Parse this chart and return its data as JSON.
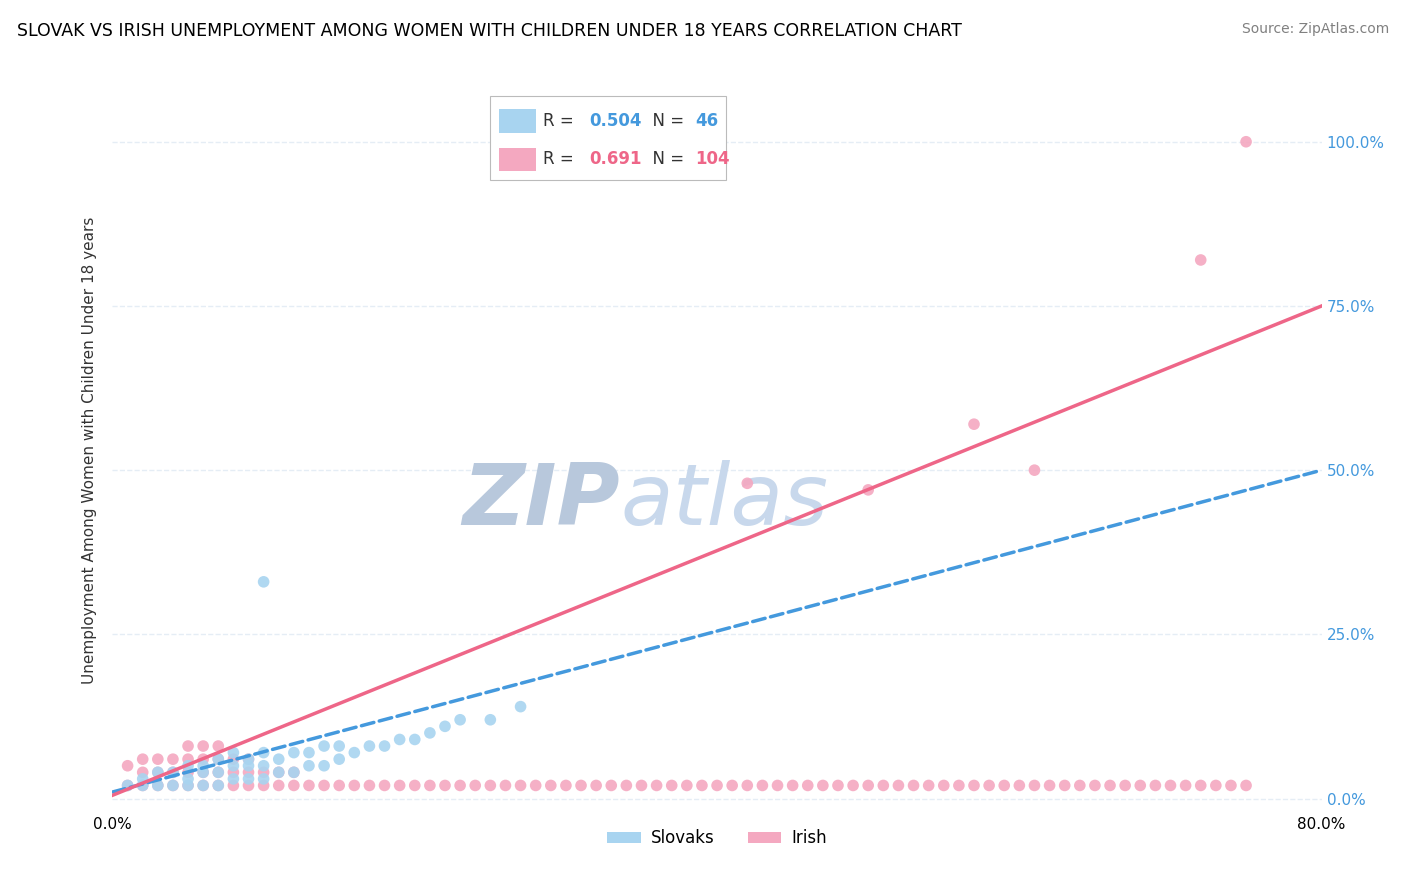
{
  "title": "SLOVAK VS IRISH UNEMPLOYMENT AMONG WOMEN WITH CHILDREN UNDER 18 YEARS CORRELATION CHART",
  "source": "Source: ZipAtlas.com",
  "ylabel": "Unemployment Among Women with Children Under 18 years",
  "xlim": [
    0.0,
    0.8
  ],
  "ylim": [
    -0.02,
    1.08
  ],
  "ytick_positions": [
    0.0,
    0.25,
    0.5,
    0.75,
    1.0
  ],
  "ytick_labels": [
    "0.0%",
    "25.0%",
    "50.0%",
    "75.0%",
    "100.0%"
  ],
  "slovak_R": 0.504,
  "slovak_N": 46,
  "irish_R": 0.691,
  "irish_N": 104,
  "slovak_color": "#A8D4F0",
  "irish_color": "#F4A8C0",
  "slovak_trend_color": "#4499DD",
  "irish_trend_color": "#EE6688",
  "watermark_color": "#C8D8EC",
  "background_color": "#FFFFFF",
  "grid_color": "#E5EDF5",
  "slovak_x": [
    0.01,
    0.02,
    0.02,
    0.03,
    0.03,
    0.04,
    0.04,
    0.05,
    0.05,
    0.05,
    0.06,
    0.06,
    0.06,
    0.07,
    0.07,
    0.07,
    0.08,
    0.08,
    0.08,
    0.09,
    0.09,
    0.09,
    0.1,
    0.1,
    0.1,
    0.11,
    0.11,
    0.12,
    0.12,
    0.13,
    0.13,
    0.14,
    0.14,
    0.15,
    0.15,
    0.16,
    0.17,
    0.18,
    0.19,
    0.2,
    0.21,
    0.22,
    0.23,
    0.25,
    0.27,
    0.1
  ],
  "slovak_y": [
    0.02,
    0.02,
    0.03,
    0.02,
    0.04,
    0.02,
    0.04,
    0.02,
    0.03,
    0.05,
    0.02,
    0.04,
    0.05,
    0.02,
    0.04,
    0.06,
    0.03,
    0.05,
    0.07,
    0.03,
    0.05,
    0.06,
    0.03,
    0.05,
    0.07,
    0.04,
    0.06,
    0.04,
    0.07,
    0.05,
    0.07,
    0.05,
    0.08,
    0.06,
    0.08,
    0.07,
    0.08,
    0.08,
    0.09,
    0.09,
    0.1,
    0.11,
    0.12,
    0.12,
    0.14,
    0.33
  ],
  "irish_x": [
    0.01,
    0.01,
    0.02,
    0.02,
    0.02,
    0.03,
    0.03,
    0.03,
    0.04,
    0.04,
    0.04,
    0.05,
    0.05,
    0.05,
    0.05,
    0.06,
    0.06,
    0.06,
    0.06,
    0.07,
    0.07,
    0.07,
    0.07,
    0.08,
    0.08,
    0.08,
    0.09,
    0.09,
    0.09,
    0.1,
    0.1,
    0.11,
    0.11,
    0.12,
    0.12,
    0.13,
    0.14,
    0.15,
    0.16,
    0.17,
    0.18,
    0.19,
    0.2,
    0.21,
    0.22,
    0.23,
    0.24,
    0.25,
    0.26,
    0.27,
    0.28,
    0.29,
    0.3,
    0.31,
    0.32,
    0.33,
    0.34,
    0.35,
    0.36,
    0.37,
    0.38,
    0.39,
    0.4,
    0.41,
    0.42,
    0.43,
    0.44,
    0.45,
    0.46,
    0.47,
    0.48,
    0.49,
    0.5,
    0.51,
    0.52,
    0.53,
    0.54,
    0.55,
    0.56,
    0.57,
    0.58,
    0.59,
    0.6,
    0.61,
    0.62,
    0.63,
    0.64,
    0.65,
    0.66,
    0.67,
    0.68,
    0.69,
    0.7,
    0.71,
    0.72,
    0.73,
    0.74,
    0.75,
    0.42,
    0.5,
    0.57,
    0.61,
    0.72,
    0.75
  ],
  "irish_y": [
    0.02,
    0.05,
    0.02,
    0.04,
    0.06,
    0.02,
    0.04,
    0.06,
    0.02,
    0.04,
    0.06,
    0.02,
    0.04,
    0.06,
    0.08,
    0.02,
    0.04,
    0.06,
    0.08,
    0.02,
    0.04,
    0.06,
    0.08,
    0.02,
    0.04,
    0.06,
    0.02,
    0.04,
    0.06,
    0.02,
    0.04,
    0.02,
    0.04,
    0.02,
    0.04,
    0.02,
    0.02,
    0.02,
    0.02,
    0.02,
    0.02,
    0.02,
    0.02,
    0.02,
    0.02,
    0.02,
    0.02,
    0.02,
    0.02,
    0.02,
    0.02,
    0.02,
    0.02,
    0.02,
    0.02,
    0.02,
    0.02,
    0.02,
    0.02,
    0.02,
    0.02,
    0.02,
    0.02,
    0.02,
    0.02,
    0.02,
    0.02,
    0.02,
    0.02,
    0.02,
    0.02,
    0.02,
    0.02,
    0.02,
    0.02,
    0.02,
    0.02,
    0.02,
    0.02,
    0.02,
    0.02,
    0.02,
    0.02,
    0.02,
    0.02,
    0.02,
    0.02,
    0.02,
    0.02,
    0.02,
    0.02,
    0.02,
    0.02,
    0.02,
    0.02,
    0.02,
    0.02,
    0.02,
    0.48,
    0.47,
    0.57,
    0.5,
    0.82,
    1.0
  ]
}
